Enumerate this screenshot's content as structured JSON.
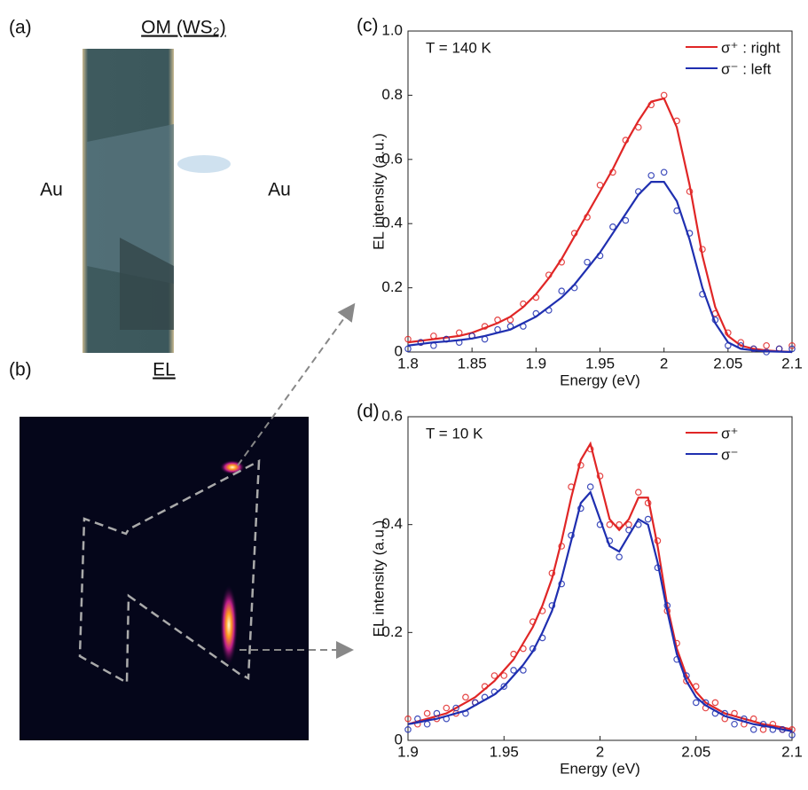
{
  "panel_a": {
    "label": "(a)",
    "title": "OM (WS₂)",
    "left_electrode": "Au",
    "right_electrode": "Au"
  },
  "panel_b": {
    "label": "(b)",
    "title": "EL"
  },
  "chart_data": [
    {
      "type": "line",
      "label": "(c)",
      "annotation": "T = 140 K",
      "x_label": "Energy (eV)",
      "y_label": "EL intensity (a.u.)",
      "x": [
        1.8,
        1.81,
        1.82,
        1.83,
        1.84,
        1.85,
        1.86,
        1.87,
        1.88,
        1.89,
        1.9,
        1.91,
        1.92,
        1.93,
        1.94,
        1.95,
        1.96,
        1.97,
        1.98,
        1.99,
        2.0,
        2.01,
        2.02,
        2.03,
        2.04,
        2.05,
        2.06,
        2.07,
        2.08,
        2.09,
        2.1
      ],
      "xlim": [
        1.8,
        2.1
      ],
      "xticks": [
        1.8,
        1.85,
        1.9,
        1.95,
        2,
        2.05,
        2.1
      ],
      "ylim": [
        0,
        1
      ],
      "yticks": [
        0,
        0.2,
        0.4,
        0.6,
        0.8,
        {
          "value": 1,
          "label": "1.0"
        }
      ],
      "legend": "upper right",
      "series": [
        {
          "name": "σ⁺ : right",
          "color": "#e02626",
          "values": [
            0.03,
            0.035,
            0.04,
            0.045,
            0.05,
            0.06,
            0.075,
            0.09,
            0.11,
            0.14,
            0.18,
            0.23,
            0.29,
            0.36,
            0.43,
            0.5,
            0.57,
            0.65,
            0.72,
            0.78,
            0.79,
            0.7,
            0.52,
            0.3,
            0.14,
            0.05,
            0.02,
            0.01,
            0.005,
            0.002,
            0
          ],
          "points": [
            0.04,
            0.03,
            0.05,
            0.04,
            0.06,
            0.05,
            0.08,
            0.1,
            0.1,
            0.15,
            0.17,
            0.24,
            0.28,
            0.37,
            0.42,
            0.52,
            0.56,
            0.66,
            0.7,
            0.77,
            0.8,
            0.72,
            0.5,
            0.32,
            0.12,
            0.06,
            0.03,
            0.01,
            0.02,
            0.01,
            0.02
          ]
        },
        {
          "name": "σ⁻ : left",
          "color": "#1f2fb0",
          "values": [
            0.02,
            0.025,
            0.03,
            0.033,
            0.037,
            0.042,
            0.05,
            0.06,
            0.07,
            0.09,
            0.11,
            0.14,
            0.17,
            0.21,
            0.26,
            0.31,
            0.37,
            0.43,
            0.49,
            0.53,
            0.53,
            0.47,
            0.35,
            0.2,
            0.09,
            0.03,
            0.01,
            0.005,
            0.002,
            0.001,
            0
          ],
          "points": [
            0.01,
            0.03,
            0.02,
            0.04,
            0.03,
            0.05,
            0.04,
            0.07,
            0.08,
            0.08,
            0.12,
            0.13,
            0.19,
            0.2,
            0.28,
            0.3,
            0.39,
            0.41,
            0.5,
            0.55,
            0.56,
            0.44,
            0.37,
            0.18,
            0.1,
            0.02,
            0.02,
            0.01,
            0,
            0.01,
            0.01
          ]
        }
      ]
    },
    {
      "type": "line",
      "label": "(d)",
      "annotation": "T = 10 K",
      "x_label": "Energy (eV)",
      "y_label": "EL intensity (a.u.)",
      "x": [
        1.9,
        1.905,
        1.91,
        1.915,
        1.92,
        1.925,
        1.93,
        1.935,
        1.94,
        1.945,
        1.95,
        1.955,
        1.96,
        1.965,
        1.97,
        1.975,
        1.98,
        1.985,
        1.99,
        1.995,
        2.0,
        2.005,
        2.01,
        2.015,
        2.02,
        2.025,
        2.03,
        2.035,
        2.04,
        2.045,
        2.05,
        2.055,
        2.06,
        2.065,
        2.07,
        2.075,
        2.08,
        2.085,
        2.09,
        2.095,
        2.1
      ],
      "xlim": [
        1.9,
        2.1
      ],
      "xticks": [
        1.9,
        1.95,
        2,
        2.05,
        2.1
      ],
      "ylim": [
        0,
        0.6
      ],
      "yticks": [
        0,
        0.2,
        0.4,
        0.6
      ],
      "legend": "upper right",
      "series": [
        {
          "name": "σ⁺",
          "color": "#e02626",
          "values": [
            0.03,
            0.035,
            0.04,
            0.045,
            0.05,
            0.06,
            0.07,
            0.08,
            0.095,
            0.11,
            0.13,
            0.15,
            0.18,
            0.21,
            0.25,
            0.3,
            0.37,
            0.45,
            0.52,
            0.55,
            0.48,
            0.41,
            0.39,
            0.41,
            0.45,
            0.45,
            0.36,
            0.25,
            0.17,
            0.12,
            0.09,
            0.07,
            0.06,
            0.05,
            0.045,
            0.04,
            0.035,
            0.03,
            0.027,
            0.024,
            0.02
          ],
          "points": [
            0.04,
            0.03,
            0.05,
            0.04,
            0.06,
            0.05,
            0.08,
            0.07,
            0.1,
            0.12,
            0.12,
            0.16,
            0.17,
            0.22,
            0.24,
            0.31,
            0.36,
            0.47,
            0.51,
            0.54,
            0.49,
            0.4,
            0.4,
            0.4,
            0.46,
            0.44,
            0.37,
            0.24,
            0.18,
            0.11,
            0.1,
            0.06,
            0.07,
            0.04,
            0.05,
            0.03,
            0.04,
            0.02,
            0.03,
            0.02,
            0.02
          ]
        },
        {
          "name": "σ⁻",
          "color": "#1f2fb0",
          "values": [
            0.03,
            0.033,
            0.037,
            0.04,
            0.045,
            0.05,
            0.055,
            0.065,
            0.075,
            0.085,
            0.1,
            0.12,
            0.14,
            0.165,
            0.2,
            0.24,
            0.3,
            0.37,
            0.44,
            0.46,
            0.41,
            0.36,
            0.35,
            0.38,
            0.41,
            0.4,
            0.33,
            0.24,
            0.16,
            0.11,
            0.08,
            0.065,
            0.055,
            0.045,
            0.04,
            0.035,
            0.03,
            0.027,
            0.024,
            0.02,
            0.017
          ],
          "points": [
            0.02,
            0.04,
            0.03,
            0.05,
            0.04,
            0.06,
            0.05,
            0.07,
            0.08,
            0.09,
            0.1,
            0.13,
            0.13,
            0.17,
            0.19,
            0.25,
            0.29,
            0.38,
            0.43,
            0.47,
            0.4,
            0.37,
            0.34,
            0.39,
            0.4,
            0.41,
            0.32,
            0.25,
            0.15,
            0.12,
            0.07,
            0.07,
            0.05,
            0.05,
            0.03,
            0.04,
            0.02,
            0.03,
            0.02,
            0.02,
            0.01
          ]
        }
      ]
    }
  ]
}
